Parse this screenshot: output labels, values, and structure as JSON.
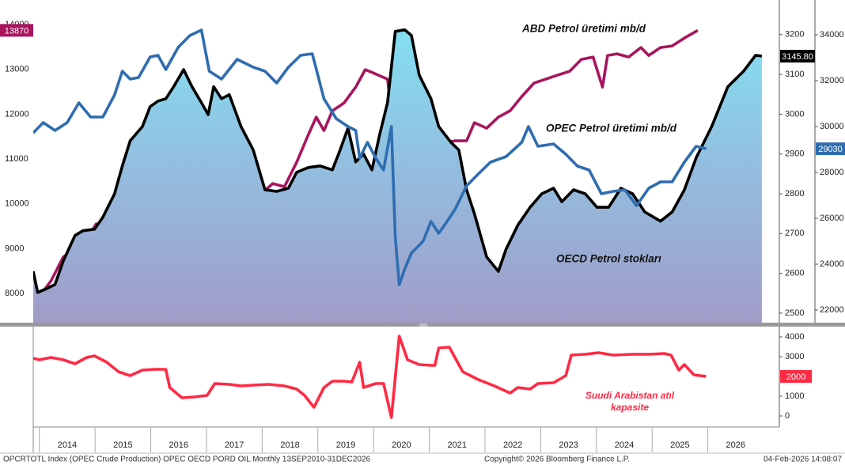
{
  "chart_data": [
    {
      "type": "line",
      "xlim": [
        2013.89,
        2027.0
      ],
      "ylim": [
        7348,
        14547
      ],
      "yticks": [
        8000,
        9000,
        10000,
        11000,
        12000,
        13000,
        14000
      ],
      "y2lim": [
        2476,
        3287
      ],
      "y2ticks": [
        2500,
        2600,
        2700,
        2800,
        2900,
        3000,
        3100,
        3200
      ],
      "y3lim": [
        21448,
        35517
      ],
      "y3ticks": [
        22000,
        24000,
        26000,
        28000,
        30000,
        32000,
        34000
      ],
      "series": [
        {
          "name": "ABD Petrol üretimi mb/d",
          "color": "#a8155e",
          "axis": "y",
          "x": [
            2013.89,
            2014.0,
            2014.21,
            2014.43,
            2014.71,
            2014.92,
            2015.02,
            2015.21,
            2015.39,
            2015.56,
            2015.78,
            2015.99,
            2016.2,
            2016.34,
            2016.56,
            2016.77,
            2016.95,
            2017.13,
            2017.27,
            2017.48,
            2017.69,
            2017.84,
            2017.98,
            2018.19,
            2018.4,
            2018.62,
            2018.83,
            2018.97,
            2019.11,
            2019.26,
            2019.47,
            2019.68,
            2019.85,
            2019.99,
            2020.25,
            2020.32,
            2020.42,
            2020.53,
            2020.61,
            2020.68,
            2020.79,
            2020.89,
            2020.96,
            2021.1,
            2021.22,
            2021.27,
            2021.46,
            2021.67,
            2021.81,
            2022.03,
            2022.24,
            2022.45,
            2022.66,
            2022.88,
            2023.09,
            2023.3,
            2023.52,
            2023.73,
            2023.94,
            2024.11,
            2024.2,
            2024.37,
            2024.58,
            2024.8,
            2024.94,
            2025.15,
            2025.36,
            2025.58,
            2025.82
          ],
          "values": [
            7877,
            7930,
            8282,
            8811,
            9076,
            9340,
            9552,
            9429,
            9640,
            9429,
            9429,
            9252,
            9076,
            8811,
            8670,
            8547,
            8864,
            8935,
            9217,
            9252,
            9393,
            9958,
            10222,
            10452,
            10381,
            10928,
            11546,
            11934,
            11634,
            12075,
            12252,
            12604,
            12992,
            12922,
            12780,
            12075,
            9782,
            10928,
            11016,
            10575,
            11104,
            10751,
            11228,
            11157,
            9958,
            11369,
            11404,
            11404,
            11810,
            11687,
            11934,
            12075,
            12392,
            12692,
            12780,
            12869,
            12957,
            13222,
            13275,
            12604,
            13310,
            13345,
            13275,
            13486,
            13310,
            13486,
            13522,
            13698,
            13870
          ]
        },
        {
          "name": "OECD Petrol stokları",
          "color": "#000000",
          "axis": "y2",
          "area": true,
          "x": [
            2013.89,
            2013.97,
            2014.14,
            2014.28,
            2014.43,
            2014.64,
            2014.78,
            2014.99,
            2015.14,
            2015.35,
            2015.49,
            2015.63,
            2015.85,
            2015.99,
            2016.13,
            2016.27,
            2016.41,
            2016.59,
            2016.74,
            2016.91,
            2017.03,
            2017.13,
            2017.27,
            2017.41,
            2017.62,
            2017.84,
            2018.05,
            2018.26,
            2018.47,
            2018.62,
            2018.83,
            2019.04,
            2019.26,
            2019.4,
            2019.54,
            2019.68,
            2019.82,
            2019.97,
            2020.11,
            2020.25,
            2020.39,
            2020.56,
            2020.68,
            2020.82,
            2021.03,
            2021.17,
            2021.39,
            2021.53,
            2021.67,
            2021.81,
            2022.03,
            2022.24,
            2022.38,
            2022.59,
            2022.81,
            2023.02,
            2023.23,
            2023.38,
            2023.59,
            2023.8,
            2024.01,
            2024.22,
            2024.44,
            2024.65,
            2024.87,
            2025.15,
            2025.36,
            2025.58,
            2025.79,
            2026.07,
            2026.36,
            2026.64,
            2026.86,
            2026.97
          ],
          "values": [
            2605,
            2552,
            2562,
            2572,
            2631,
            2695,
            2707,
            2711,
            2741,
            2800,
            2870,
            2933,
            2969,
            3019,
            3033,
            3039,
            3069,
            3112,
            3069,
            3029,
            2999,
            3069,
            3039,
            3049,
            2969,
            2910,
            2810,
            2806,
            2814,
            2854,
            2866,
            2870,
            2860,
            2910,
            2965,
            2880,
            2900,
            2860,
            2949,
            3029,
            3208,
            3212,
            3198,
            3098,
            3039,
            2969,
            2929,
            2910,
            2810,
            2750,
            2641,
            2605,
            2661,
            2721,
            2766,
            2800,
            2814,
            2780,
            2810,
            2800,
            2766,
            2766,
            2814,
            2800,
            2754,
            2731,
            2754,
            2810,
            2890,
            2969,
            3069,
            3108,
            3148,
            3145.8
          ],
          "last_value_label": "3145.80"
        },
        {
          "name": "OPEC Petrol üretimi mb/d",
          "color": "#2e6db0",
          "axis": "y3",
          "x": [
            2013.89,
            2014.07,
            2014.28,
            2014.5,
            2014.71,
            2014.92,
            2015.14,
            2015.35,
            2015.49,
            2015.63,
            2015.78,
            2015.99,
            2016.13,
            2016.27,
            2016.49,
            2016.7,
            2016.91,
            2017.05,
            2017.27,
            2017.55,
            2017.84,
            2018.05,
            2018.26,
            2018.47,
            2018.69,
            2018.9,
            2019.11,
            2019.33,
            2019.54,
            2019.68,
            2019.75,
            2019.89,
            2020.04,
            2020.18,
            2020.32,
            2020.39,
            2020.46,
            2020.56,
            2020.68,
            2020.89,
            2021.03,
            2021.17,
            2021.32,
            2021.46,
            2021.67,
            2021.88,
            2022.1,
            2022.38,
            2022.66,
            2022.78,
            2022.95,
            2023.23,
            2023.45,
            2023.66,
            2023.87,
            2024.09,
            2024.3,
            2024.51,
            2024.72,
            2024.94,
            2025.15,
            2025.36,
            2025.58,
            2025.79,
            2025.97
          ],
          "values": [
            29724,
            30172,
            29827,
            30172,
            31034,
            30413,
            30413,
            31379,
            32413,
            32068,
            32137,
            33034,
            33103,
            32482,
            33448,
            33965,
            34206,
            32413,
            32068,
            32930,
            32585,
            32413,
            31896,
            32585,
            33103,
            33172,
            31206,
            30344,
            30000,
            29827,
            28620,
            29310,
            28620,
            28103,
            30000,
            25172,
            23103,
            23793,
            24482,
            25000,
            25862,
            25344,
            25862,
            26379,
            27413,
            27931,
            28448,
            28689,
            29310,
            30000,
            29138,
            29241,
            28793,
            28275,
            28103,
            27068,
            27172,
            27241,
            26551,
            27310,
            27586,
            27586,
            28448,
            29138,
            29030
          ]
        }
      ]
    },
    {
      "type": "line",
      "xlim": [
        2013.89,
        2027.0
      ],
      "xticks": [
        {
          "value": 2014,
          "label": "2014"
        },
        {
          "value": 2015,
          "label": "2015"
        },
        {
          "value": 2016,
          "label": "2016"
        },
        {
          "value": 2017,
          "label": "2017"
        },
        {
          "value": 2018,
          "label": "2018"
        },
        {
          "value": 2019,
          "label": "2019"
        },
        {
          "value": 2020,
          "label": "2020"
        },
        {
          "value": 2021,
          "label": "2021"
        },
        {
          "value": 2022,
          "label": "2022"
        },
        {
          "value": 2023,
          "label": "2023"
        },
        {
          "value": 2024,
          "label": "2024"
        },
        {
          "value": 2025,
          "label": "2025"
        },
        {
          "value": 2026,
          "label": "2026"
        }
      ],
      "ylim": [
        -560,
        4440
      ],
      "yticks": [
        0,
        1000,
        2000,
        3000,
        4000
      ],
      "series": [
        {
          "name": "Suudi Arabistan atıl kapasite",
          "color": "#ff2a44",
          "axis": "y",
          "x": [
            2013.89,
            2014.0,
            2014.21,
            2014.43,
            2014.64,
            2014.85,
            2014.99,
            2015.21,
            2015.42,
            2015.63,
            2015.85,
            2016.06,
            2016.27,
            2016.34,
            2016.56,
            2016.77,
            2017.01,
            2017.15,
            2017.41,
            2017.62,
            2017.84,
            2018.12,
            2018.4,
            2018.62,
            2018.76,
            2018.93,
            2019.11,
            2019.26,
            2019.47,
            2019.61,
            2019.75,
            2019.82,
            2020.04,
            2020.18,
            2020.32,
            2020.46,
            2020.61,
            2020.82,
            2021.03,
            2021.1,
            2021.17,
            2021.36,
            2021.6,
            2021.88,
            2022.17,
            2022.45,
            2022.59,
            2022.81,
            2022.95,
            2023.23,
            2023.45,
            2023.55,
            2023.8,
            2024.04,
            2024.3,
            2024.65,
            2024.94,
            2025.22,
            2025.34,
            2025.48,
            2025.58,
            2025.75,
            2025.97
          ],
          "values": [
            2920,
            2840,
            2960,
            2840,
            2640,
            2960,
            3040,
            2720,
            2240,
            2040,
            2320,
            2360,
            2360,
            1440,
            920,
            960,
            1040,
            1640,
            1600,
            1520,
            1560,
            1600,
            1520,
            1360,
            1040,
            440,
            1440,
            1760,
            1760,
            1720,
            2720,
            1440,
            1640,
            1640,
            -80,
            4040,
            2840,
            2600,
            2560,
            2560,
            3440,
            3480,
            2240,
            1840,
            1520,
            1160,
            1440,
            1360,
            1640,
            1680,
            2040,
            3080,
            3120,
            3200,
            3080,
            3120,
            3120,
            3160,
            3080,
            2320,
            2600,
            2080,
            2000
          ]
        }
      ]
    }
  ],
  "footer": {
    "source": "OPCRTOTL Index (OPEC Crude Production) OPEC OECD PORD OIL Monthly 13SEP2010-31DEC2026",
    "copyright": "Copyright© 2026 Bloomberg Finance L.P.",
    "timestamp": "04-Feb-2026 14:08:07"
  }
}
